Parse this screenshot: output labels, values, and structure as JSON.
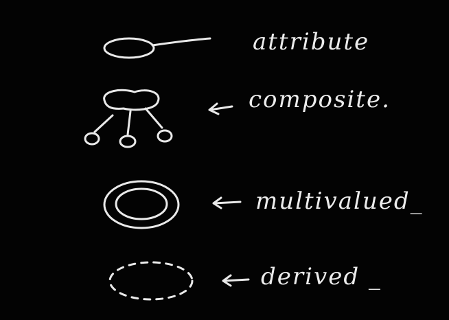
{
  "colors": {
    "background": "#000000",
    "chalk": "#e9e9e9"
  },
  "legend": [
    {
      "symbol": "single-ellipse-with-line",
      "label": "attribute"
    },
    {
      "symbol": "ellipse-with-three-sub-ellipses",
      "arrow": "←",
      "label": "composite."
    },
    {
      "symbol": "double-ellipse",
      "arrow": "←",
      "label": "multivalued_"
    },
    {
      "symbol": "dashed-ellipse",
      "arrow": "←",
      "label": "derived _"
    }
  ]
}
